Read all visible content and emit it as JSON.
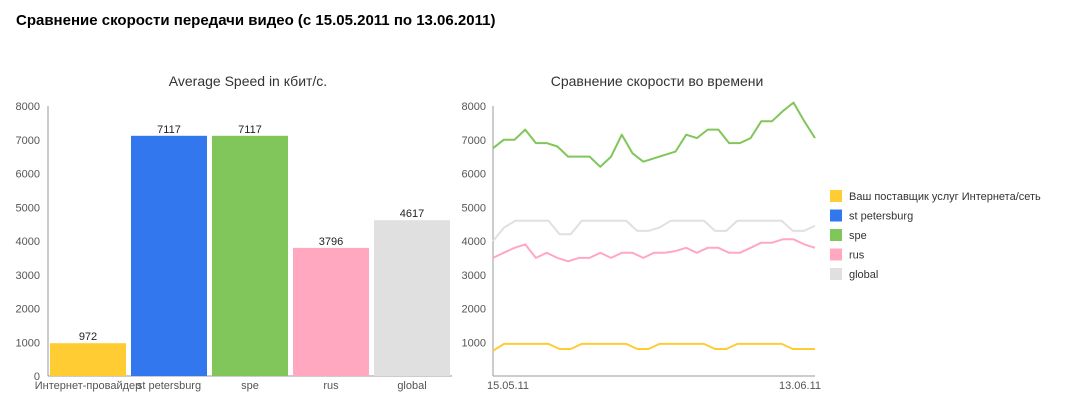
{
  "page": {
    "title": "Сравнение скорости передачи видео (с 15.05.2011 по 13.06.2011)"
  },
  "chart_data": [
    {
      "type": "bar",
      "title": "Average Speed in кбит/с.",
      "categories": [
        "Интернет-провайдер",
        "st petersburg",
        "spe",
        "rus",
        "global"
      ],
      "values": [
        972,
        7117,
        7117,
        3796,
        4617
      ],
      "colors": [
        "#ffcc33",
        "#3377ee",
        "#80c65a",
        "#ffa8c0",
        "#e0e0e0"
      ],
      "ylim": [
        0,
        8000
      ],
      "yticks": [
        0,
        1000,
        2000,
        3000,
        4000,
        5000,
        6000,
        7000,
        8000
      ],
      "grid": false
    },
    {
      "type": "line",
      "title": "Сравнение скорости во времени",
      "x_start_label": "15.05.11",
      "x_end_label": "13.06.11",
      "ylim": [
        0,
        8000
      ],
      "yticks": [
        1000,
        2000,
        3000,
        4000,
        5000,
        6000,
        7000,
        8000
      ],
      "legend_position": "right",
      "series": [
        {
          "name": "Ваш поставщик услуг Интернета/сеть",
          "color": "#ffcc33",
          "values": [
            750,
            950,
            950,
            950,
            950,
            950,
            800,
            800,
            950,
            950,
            950,
            950,
            950,
            800,
            800,
            950,
            950,
            950,
            950,
            950,
            800,
            800,
            950,
            950,
            950,
            950,
            950,
            800,
            800,
            800
          ]
        },
        {
          "name": "st petersburg",
          "color": "#3377ee",
          "values": []
        },
        {
          "name": "spe",
          "color": "#80c65a",
          "values": [
            6750,
            7000,
            7000,
            7300,
            6900,
            6900,
            6800,
            6500,
            6500,
            6500,
            6200,
            6500,
            7150,
            6600,
            6350,
            6450,
            6550,
            6650,
            7150,
            7050,
            7300,
            7300,
            6900,
            6900,
            7050,
            7550,
            7550,
            7850,
            8100,
            7550,
            7050
          ]
        },
        {
          "name": "rus",
          "color": "#ffa8c0",
          "values": [
            3500,
            3650,
            3800,
            3900,
            3500,
            3650,
            3500,
            3400,
            3500,
            3500,
            3650,
            3500,
            3650,
            3650,
            3500,
            3650,
            3650,
            3700,
            3800,
            3650,
            3800,
            3800,
            3650,
            3650,
            3800,
            3950,
            3950,
            4050,
            4050,
            3900,
            3800
          ]
        },
        {
          "name": "global",
          "color": "#e0e0e0",
          "values": [
            4000,
            4400,
            4600,
            4600,
            4600,
            4600,
            4200,
            4200,
            4600,
            4600,
            4600,
            4600,
            4600,
            4300,
            4300,
            4400,
            4600,
            4600,
            4600,
            4600,
            4300,
            4300,
            4600,
            4600,
            4600,
            4600,
            4600,
            4300,
            4300,
            4450
          ]
        }
      ]
    }
  ]
}
